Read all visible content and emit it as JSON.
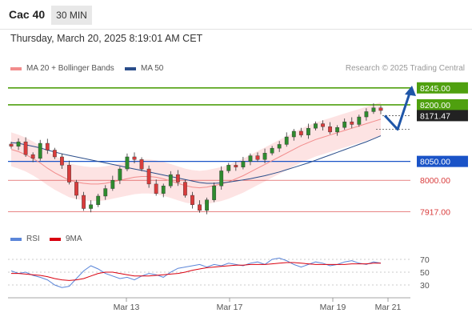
{
  "header": {
    "instrument": "Cac 40",
    "timeframe": "30 MIN"
  },
  "timestamp": "Thursday, March 20, 2025 8:19:01 AM CET",
  "legend": {
    "ma20_label": "MA 20 + Bollinger Bands",
    "ma50_label": "MA 50",
    "credit": "Research © 2025 Trading Central",
    "rsi_label": "RSI",
    "rsi_ma_label": "9MA"
  },
  "colors": {
    "ma20": "#f28c8c",
    "ma50": "#2a4d8a",
    "band": "#fde3e3",
    "bull": "#2e8b2e",
    "bear": "#d93c3c",
    "resistance": "#4fa00f",
    "support_current": "#1a53c7",
    "support_other": "#d93c3c",
    "rsi": "#5b86d9",
    "rsi_ma": "#d9000f",
    "arrow": "#1f56a8"
  },
  "chart_data": [
    {
      "type": "candlestick",
      "title": "",
      "x_ticks": [
        "Mar 13",
        "Mar 17",
        "Mar 19",
        "Mar 21"
      ],
      "y_range": [
        7890,
        8270
      ],
      "levels": [
        {
          "value": 8245.0,
          "label": "8245.00",
          "kind": "resistance"
        },
        {
          "value": 8200.0,
          "label": "8200.00",
          "kind": "resistance"
        },
        {
          "value": 8171.47,
          "label": "8171.47",
          "kind": "last"
        },
        {
          "value": 8050.0,
          "label": "8050.00",
          "kind": "support_current"
        },
        {
          "value": 8000.0,
          "label": "8000.00",
          "kind": "support"
        },
        {
          "value": 7917.0,
          "label": "7917.00",
          "kind": "support"
        }
      ],
      "close_path": [
        8090,
        8102,
        8068,
        8058,
        8098,
        8080,
        8062,
        8040,
        7995,
        7960,
        7925,
        7935,
        7958,
        7978,
        8000,
        8030,
        8062,
        8055,
        8030,
        7990,
        7965,
        7985,
        8015,
        7995,
        7960,
        7935,
        7920,
        7948,
        7985,
        8025,
        8040,
        8035,
        8050,
        8065,
        8055,
        8072,
        8085,
        8095,
        8115,
        8130,
        8120,
        8138,
        8150,
        8142,
        8128,
        8140,
        8155,
        8148,
        8168,
        8182,
        8192,
        8185
      ],
      "series": [
        {
          "name": "MA 20",
          "values": [
            8082,
            8076,
            8068,
            8058,
            8046,
            8032,
            8020,
            8010,
            8000,
            7995,
            7992,
            7990,
            7990,
            7992,
            7996,
            8000,
            8004,
            8008,
            8010,
            8010,
            8008,
            8004,
            7998,
            7992,
            7986,
            7982,
            7980,
            7982,
            7986,
            7990,
            7996,
            8004,
            8012,
            8022,
            8032,
            8042,
            8052,
            8062,
            8072,
            8082,
            8092,
            8100,
            8108,
            8114,
            8120,
            8126,
            8132,
            8138,
            8144,
            8150,
            8156,
            8162
          ]
        },
        {
          "name": "MA 50",
          "values": [
            8100,
            8098,
            8094,
            8090,
            8086,
            8080,
            8075,
            8070,
            8066,
            8062,
            8058,
            8054,
            8050,
            8046,
            8042,
            8038,
            8034,
            8030,
            8026,
            8022,
            8018,
            8014,
            8010,
            8006,
            8002,
            7998,
            7994,
            7992,
            7992,
            7993,
            7995,
            7998,
            8001,
            8004,
            8008,
            8012,
            8017,
            8022,
            8028,
            8034,
            8040,
            8046,
            8053,
            8060,
            8067,
            8074,
            8081,
            8088,
            8095,
            8102,
            8110,
            8118
          ]
        }
      ],
      "bollinger_width": 45,
      "forecast": [
        8171.47,
        8135,
        8245
      ]
    },
    {
      "type": "line",
      "title": "",
      "y_ticks": [
        70,
        50,
        30
      ],
      "y_range": [
        15,
        85
      ],
      "series": [
        {
          "name": "RSI",
          "values": [
            52,
            48,
            50,
            45,
            42,
            38,
            30,
            26,
            28,
            40,
            52,
            60,
            55,
            48,
            44,
            40,
            42,
            38,
            44,
            48,
            46,
            42,
            50,
            56,
            58,
            60,
            62,
            58,
            62,
            60,
            64,
            62,
            60,
            64,
            66,
            62,
            70,
            72,
            68,
            62,
            58,
            62,
            66,
            64,
            60,
            62,
            66,
            68,
            64,
            62,
            66,
            64
          ]
        },
        {
          "name": "9MA",
          "values": [
            48,
            48,
            47,
            46,
            45,
            43,
            40,
            38,
            37,
            38,
            40,
            44,
            48,
            50,
            50,
            48,
            46,
            44,
            44,
            44,
            45,
            46,
            47,
            48,
            50,
            53,
            55,
            57,
            58,
            59,
            60,
            61,
            61,
            62,
            62,
            62,
            63,
            64,
            65,
            65,
            64,
            63,
            62,
            62,
            62,
            62,
            62,
            63,
            63,
            63,
            64,
            64
          ]
        }
      ]
    }
  ]
}
